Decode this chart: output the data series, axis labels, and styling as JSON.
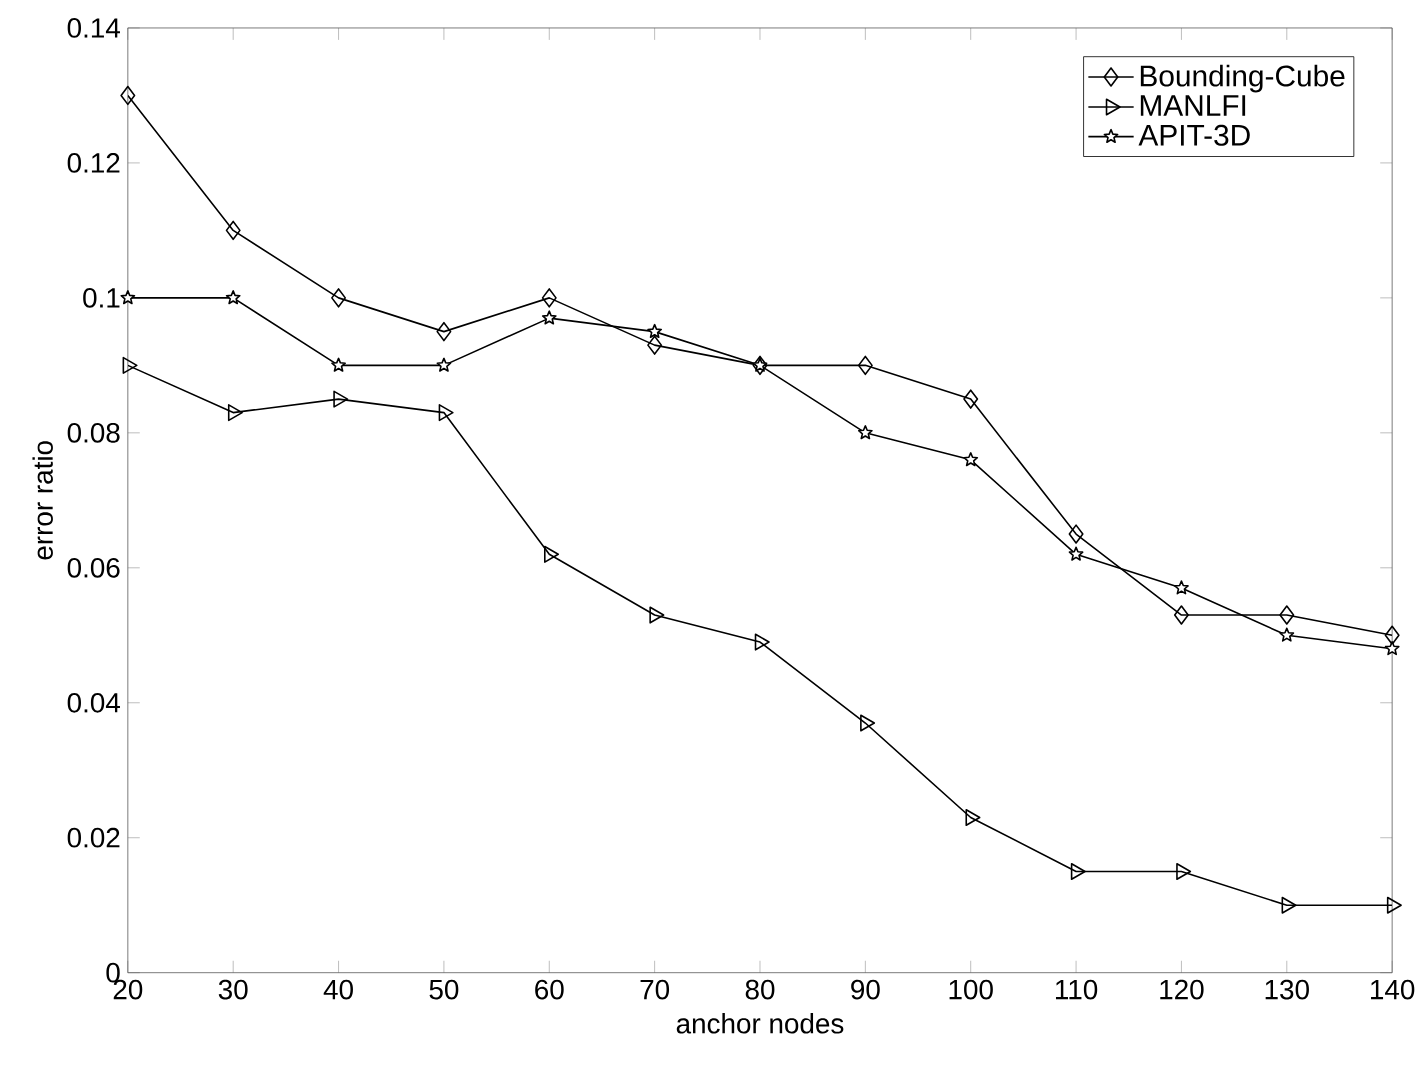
{
  "chart_data": {
    "type": "line",
    "xlabel": "anchor nodes",
    "ylabel": "error ratio",
    "x": [
      20,
      30,
      40,
      50,
      60,
      70,
      80,
      90,
      100,
      110,
      120,
      130,
      140
    ],
    "series": [
      {
        "name": "Bounding-Cube",
        "color": "#000000",
        "marker": "diamond",
        "values": [
          0.13,
          0.11,
          0.1,
          0.095,
          0.1,
          0.093,
          0.09,
          0.09,
          0.085,
          0.065,
          0.053,
          0.053,
          0.05
        ]
      },
      {
        "name": "MANLFI",
        "color": "#000000",
        "marker": "triangle",
        "values": [
          0.09,
          0.083,
          0.085,
          0.083,
          0.062,
          0.053,
          0.049,
          0.037,
          0.023,
          0.015,
          0.015,
          0.01,
          0.01
        ]
      },
      {
        "name": "APIT-3D",
        "color": "#000000",
        "marker": "star",
        "values": [
          0.1,
          0.1,
          0.09,
          0.09,
          0.097,
          0.095,
          0.09,
          0.08,
          0.076,
          0.062,
          0.057,
          0.05,
          0.048
        ]
      }
    ],
    "xlim": [
      20,
      140
    ],
    "ylim": [
      0,
      0.14
    ],
    "xticks": [
      20,
      30,
      40,
      50,
      60,
      70,
      80,
      90,
      100,
      110,
      120,
      130,
      140
    ],
    "yticks": [
      0,
      0.02,
      0.04,
      0.06,
      0.08,
      0.1,
      0.12,
      0.14
    ],
    "legend": "top right",
    "line_style": "solid"
  }
}
